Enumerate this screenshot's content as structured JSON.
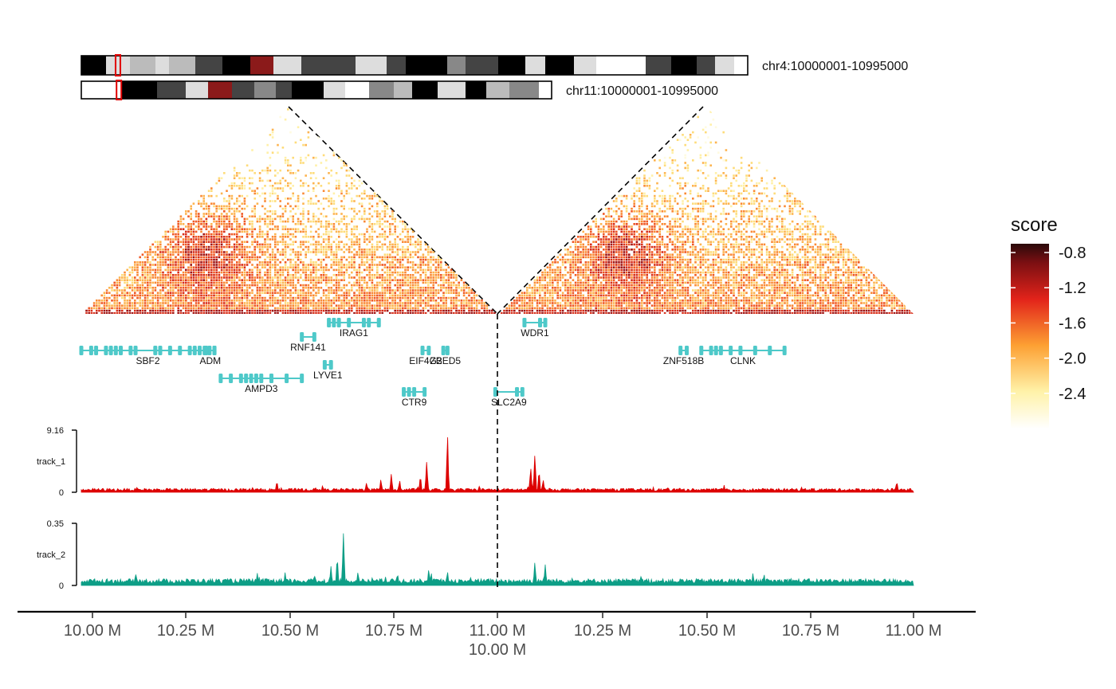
{
  "chart_data": {
    "type": "hic-contact-map",
    "chromosomes": [
      {
        "label": "chr4:10000001-10995000",
        "highlight_fraction": 0.055
      },
      {
        "label": "chr11:10000001-10995000",
        "highlight_fraction": 0.08
      }
    ],
    "heatmap": {
      "legend_title": "score",
      "scale": {
        "min": -2.8,
        "max": -0.7
      },
      "legend_ticks": [
        -0.8,
        -1.2,
        -1.6,
        -2.0,
        -2.4
      ]
    },
    "genes": [
      {
        "name": "SBF2",
        "start": 10000000,
        "end": 10320000,
        "row": 2
      },
      {
        "name": "ADM",
        "start": 10300000,
        "end": 10320000,
        "row": 2
      },
      {
        "name": "RNF141",
        "start": 10530000,
        "end": 10560000,
        "row": 1
      },
      {
        "name": "IRAG1",
        "start": 10595000,
        "end": 10715000,
        "row": 0
      },
      {
        "name": "LYVE1",
        "start": 10585000,
        "end": 10600000,
        "row": 3
      },
      {
        "name": "AMPD3",
        "start": 10335000,
        "end": 10530000,
        "row": 4
      },
      {
        "name": "EIF4G2",
        "start": 10820000,
        "end": 10835000,
        "row": 2
      },
      {
        "name": "ZBED5",
        "start": 10870000,
        "end": 10880000,
        "row": 2
      },
      {
        "name": "CTR9",
        "start": 10775000,
        "end": 10825000,
        "row": 5
      },
      {
        "name": "WDR1",
        "start": 11065000,
        "end": 11115000,
        "row": 0
      },
      {
        "name": "SLC2A9",
        "start": 10995000,
        "end": 11060000,
        "row": 5
      },
      {
        "name": "ZNF518B",
        "start": 11440000,
        "end": 11455000,
        "row": 2
      },
      {
        "name": "CLNK",
        "start": 11490000,
        "end": 11690000,
        "row": 2
      }
    ],
    "tracks": [
      {
        "name": "track_1",
        "color": "#dd0000",
        "ylim": [
          0,
          9.16
        ],
        "tick_labels": [
          "9.16",
          "0"
        ],
        "baseline": 0.3,
        "peaks": [
          [
            10470000,
            1.9
          ],
          [
            10580000,
            1.1
          ],
          [
            10685000,
            1.4
          ],
          [
            10720000,
            2.2
          ],
          [
            10745000,
            3.1
          ],
          [
            10765000,
            2.0
          ],
          [
            10815000,
            2.8
          ],
          [
            10830000,
            5.0
          ],
          [
            10880000,
            9.16
          ],
          [
            11000000,
            0.6
          ],
          [
            11080000,
            4.2
          ],
          [
            11090000,
            6.6
          ],
          [
            11100000,
            3.6
          ],
          [
            11110000,
            2.2
          ],
          [
            11410000,
            0.9
          ],
          [
            11470000,
            0.8
          ],
          [
            11960000,
            1.8
          ]
        ]
      },
      {
        "name": "track_2",
        "color": "#0d9e86",
        "ylim": [
          0,
          0.35
        ],
        "tick_labels": [
          "0.35",
          "0"
        ],
        "baseline": 0.02,
        "peaks": [
          [
            10490000,
            0.08
          ],
          [
            10560000,
            0.07
          ],
          [
            10600000,
            0.12
          ],
          [
            10615000,
            0.2
          ],
          [
            10630000,
            0.35
          ],
          [
            10665000,
            0.09
          ],
          [
            10760000,
            0.08
          ],
          [
            10835000,
            0.1
          ],
          [
            10880000,
            0.09
          ],
          [
            11090000,
            0.15
          ],
          [
            11115000,
            0.13
          ],
          [
            11180000,
            0.05
          ],
          [
            11705000,
            0.05
          ]
        ]
      }
    ],
    "x_ticks": [
      "10.00 M",
      "10.25 M",
      "10.50 M",
      "10.75 M",
      "11.00 M",
      "10.25 M",
      "10.50 M",
      "10.75 M",
      "11.00 M"
    ],
    "x_title": "10.00 M"
  }
}
